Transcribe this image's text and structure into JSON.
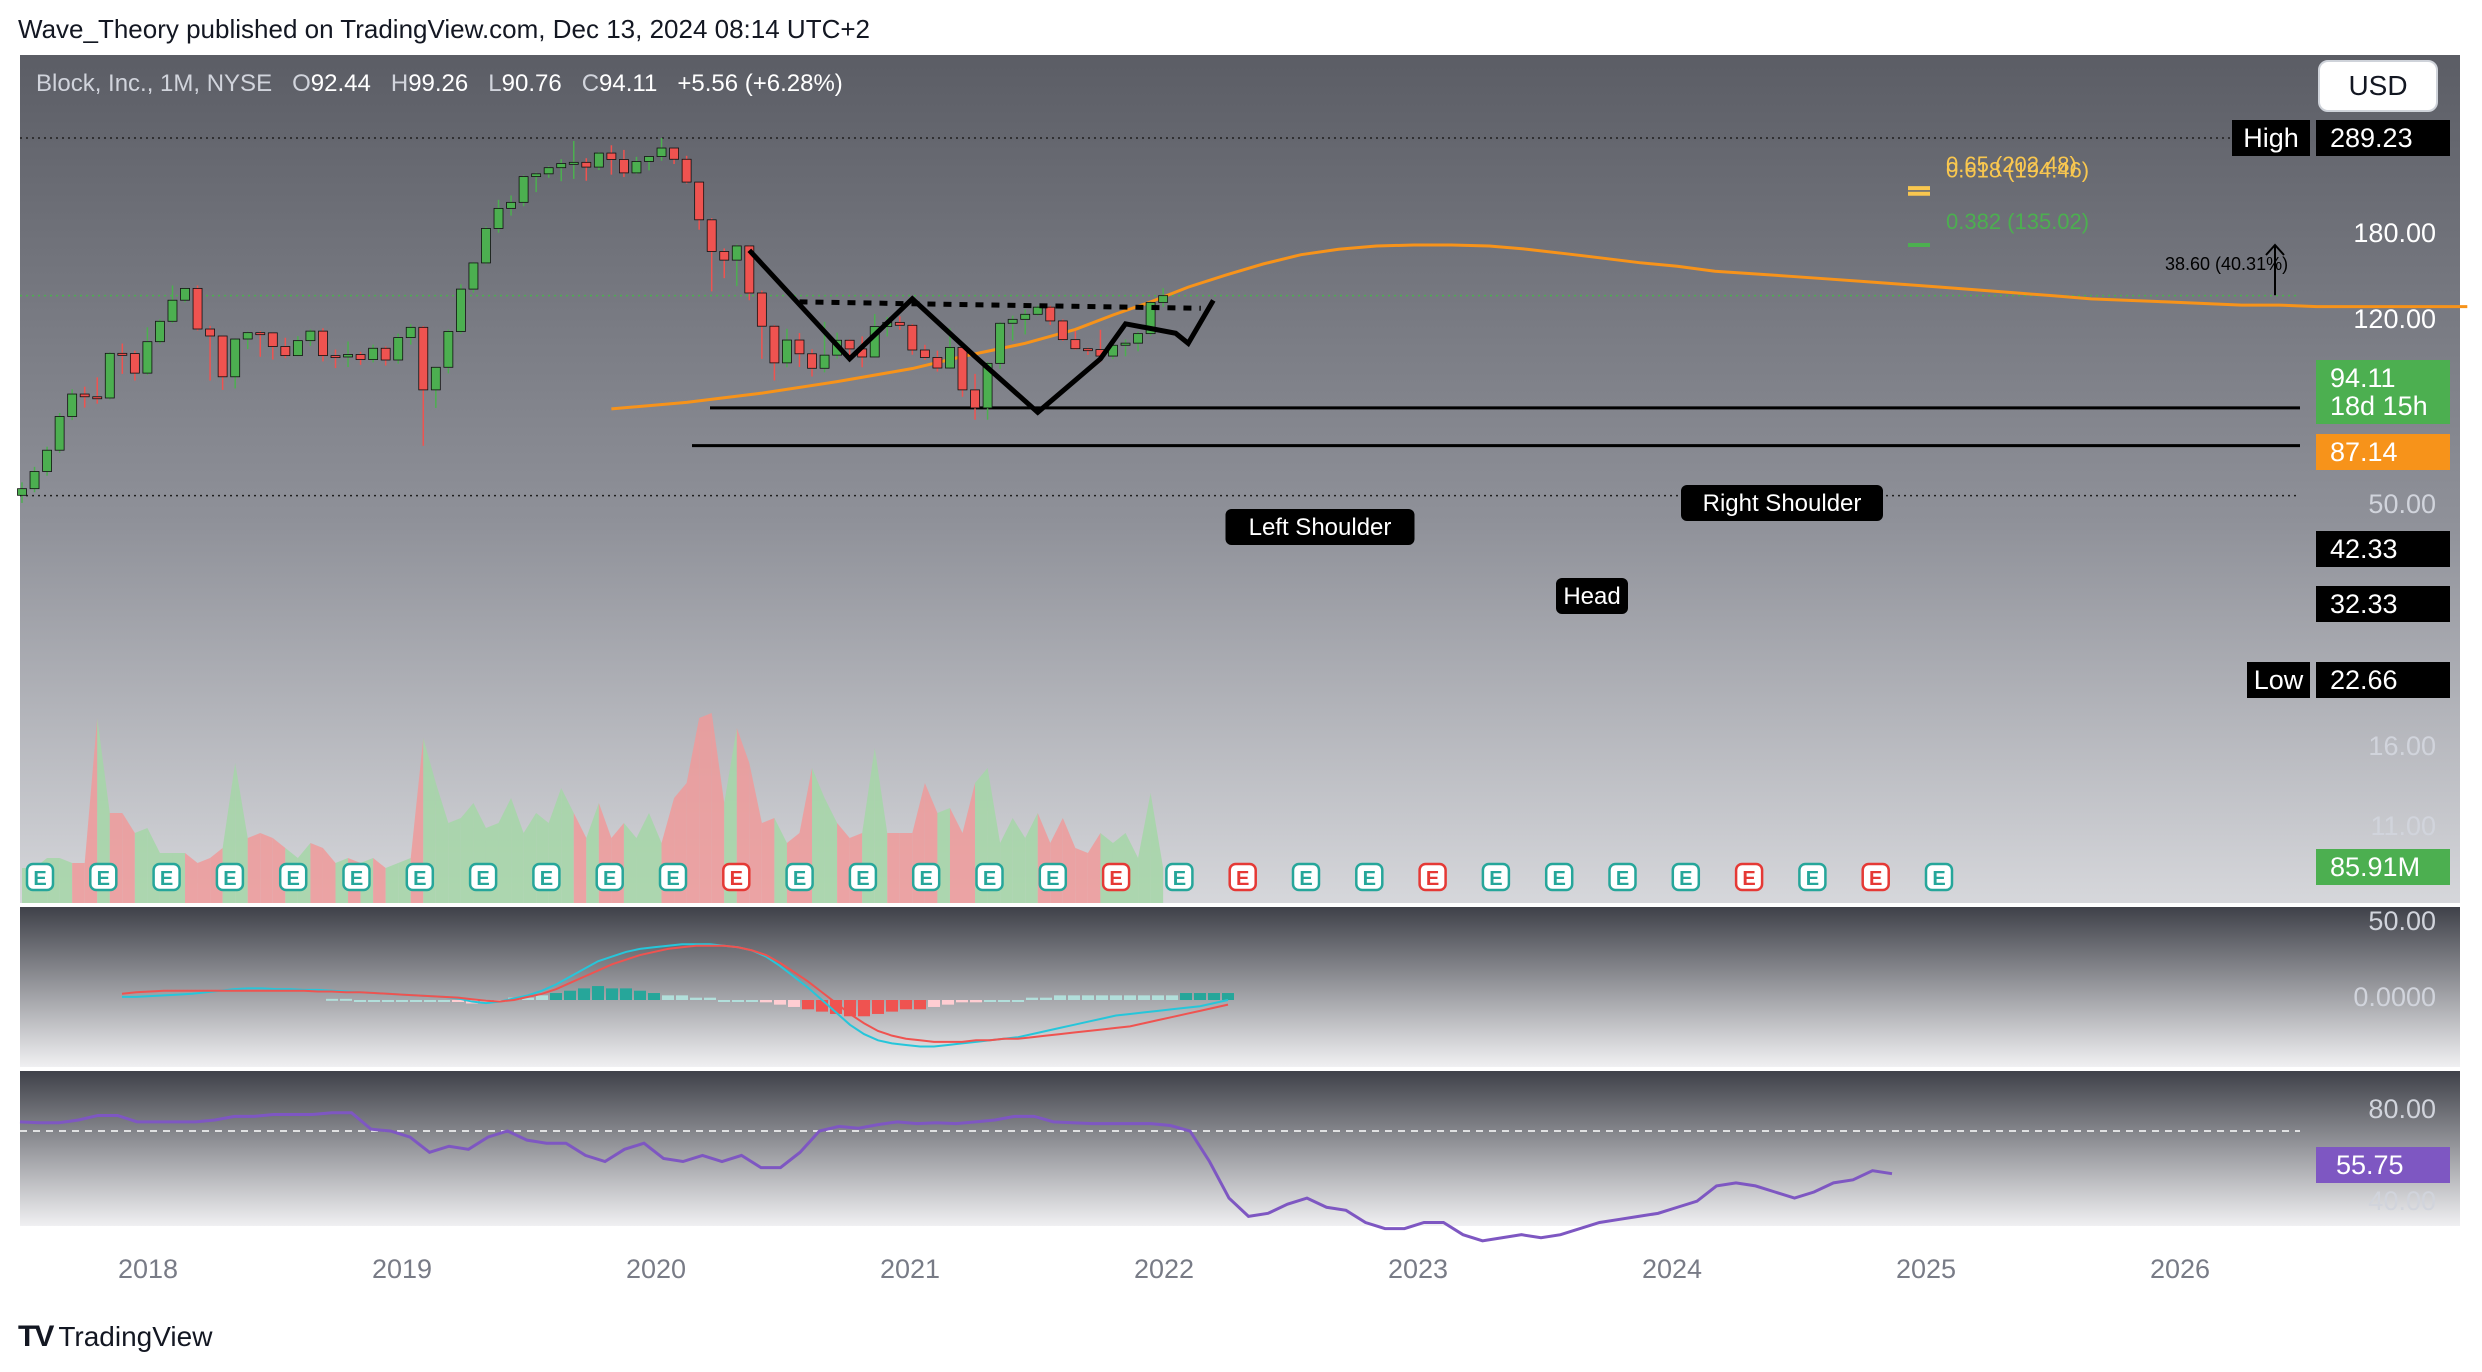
{
  "publisher_line": "Wave_Theory published on TradingView.com, Dec 13, 2024 08:14 UTC+2",
  "brand": "TradingView",
  "currency_button": "USD",
  "header": {
    "symbol": "Block, Inc., 1M, NYSE",
    "o_label": "O",
    "o_value": "92.44",
    "h_label": "H",
    "h_value": "99.26",
    "l_label": "L",
    "l_value": "90.76",
    "c_label": "C",
    "c_value": "94.11",
    "change": "+5.56 (+6.28%)"
  },
  "colors": {
    "up": "#26a69a",
    "up_candle": "#4caf50",
    "down": "#ef5350",
    "ma": "#f7931a",
    "macd": "#26c6da",
    "signal": "#ef5350",
    "rsi": "#7e57c2",
    "fib_gold": "#f9c74f",
    "fib_green": "#4caf50"
  },
  "chart_data": [
    {
      "type": "candlestick",
      "title": "Block, Inc., 1M, NYSE",
      "x_axis_ticks": [
        "2018",
        "2019",
        "2020",
        "2021",
        "2022",
        "2023",
        "2024",
        "2025",
        "2026"
      ],
      "y_axis_scale": "log",
      "y_axis_ticks": [
        "180.00",
        "120.00",
        "50.00",
        "16.00",
        "11.00"
      ],
      "price_labels": [
        {
          "text": "High",
          "value": "289.23"
        },
        {
          "text": "",
          "value": "94.11"
        },
        {
          "text": "",
          "value": "18d 15h"
        },
        {
          "text": "",
          "value": "87.14"
        },
        {
          "text": "",
          "value": "42.33"
        },
        {
          "text": "",
          "value": "32.33"
        },
        {
          "text": "Low",
          "value": "22.66"
        }
      ],
      "volume_label": "85.91M",
      "fib_levels": [
        {
          "label": "0.65 (202.48)",
          "value": 202.48
        },
        {
          "label": "0.618 (194.46)",
          "value": 194.46
        },
        {
          "label": "0.382 (135.02)",
          "value": 135.02
        }
      ],
      "measure_label": "38.60 (40.31%)",
      "horizontal_levels": [
        42.33,
        32.33,
        289.23,
        22.66
      ],
      "pattern_labels": [
        "Left Shoulder",
        "Head",
        "Right Shoulder"
      ],
      "ma_last": 87.14,
      "candles": [
        [
          22.7,
          23.8,
          21.5,
          24.9
        ],
        [
          23.8,
          26.9,
          23.2,
          27.8
        ],
        [
          26.9,
          31.3,
          26.1,
          32.1
        ],
        [
          31.3,
          39.8,
          30.7,
          40.8
        ],
        [
          39.8,
          46.7,
          38.8,
          48.3
        ],
        [
          46.7,
          45.8,
          42.4,
          49.2
        ],
        [
          45.8,
          45.4,
          43.6,
          52.6
        ],
        [
          45.4,
          62.4,
          44.9,
          62.9
        ],
        [
          62.4,
          62.3,
          53.9,
          66.9
        ],
        [
          62.3,
          54.2,
          51.4,
          63.6
        ],
        [
          54.2,
          67.8,
          53.5,
          75.1
        ],
        [
          67.8,
          78.4,
          66.8,
          79.5
        ],
        [
          78.4,
          91.1,
          77.4,
          101.2
        ],
        [
          91.1,
          99.1,
          89.8,
          99.5
        ],
        [
          99.1,
          74.2,
          73.4,
          101.2
        ],
        [
          74.2,
          70.6,
          51.4,
          75.9
        ],
        [
          70.6,
          52.8,
          48.1,
          70.9
        ],
        [
          52.8,
          69.1,
          48.6,
          69.4
        ],
        [
          69.1,
          72.3,
          64.3,
          72.9
        ],
        [
          72.3,
          72.2,
          60.9,
          73.1
        ],
        [
          72.2,
          65.5,
          59.7,
          72.5
        ],
        [
          65.5,
          61.4,
          60.3,
          69.7
        ],
        [
          61.4,
          68.3,
          61.2,
          70.5
        ],
        [
          68.3,
          73.1,
          65.8,
          74.0
        ],
        [
          73.1,
          61.4,
          58.9,
          74.6
        ],
        [
          61.4,
          60.8,
          56.2,
          64.1
        ],
        [
          60.8,
          61.9,
          56.6,
          67.9
        ],
        [
          61.9,
          59.7,
          57.5,
          63.1
        ],
        [
          59.7,
          64.7,
          58.5,
          66.4
        ],
        [
          64.7,
          59.5,
          57.2,
          65.6
        ],
        [
          59.5,
          69.8,
          58.0,
          71.8
        ],
        [
          69.8,
          75.1,
          66.4,
          76.7
        ],
        [
          75.1,
          48.1,
          32.3,
          75.8
        ],
        [
          48.1,
          56.5,
          42.3,
          56.6
        ],
        [
          56.5,
          72.9,
          54.1,
          73.9
        ],
        [
          72.9,
          98.6,
          71.8,
          102.0
        ],
        [
          98.6,
          118.8,
          96.1,
          119.6
        ],
        [
          118.8,
          151.9,
          117.7,
          153.8
        ],
        [
          151.9,
          175.2,
          147.3,
          186.2
        ],
        [
          175.2,
          182.9,
          166.4,
          192.1
        ],
        [
          182.9,
          219.7,
          177.9,
          221.7
        ],
        [
          219.7,
          224.1,
          196.8,
          226.1
        ],
        [
          224.1,
          234.1,
          217.9,
          236.5
        ],
        [
          234.1,
          241.2,
          212.6,
          248.6
        ],
        [
          241.2,
          243.2,
          216.1,
          283.2
        ],
        [
          243.2,
          235.1,
          213.3,
          250.4
        ],
        [
          235.1,
          259.8,
          230.2,
          261.8
        ],
        [
          259.8,
          248.2,
          222.8,
          274.6
        ],
        [
          248.2,
          225.6,
          219.0,
          265.7
        ],
        [
          225.6,
          244.7,
          223.7,
          252.8
        ],
        [
          244.7,
          253.5,
          229.7,
          254.7
        ],
        [
          253.5,
          269.3,
          245.9,
          289.2
        ],
        [
          269.3,
          248.6,
          240.3,
          269.3
        ],
        [
          248.6,
          211.3,
          209.0,
          254.8
        ],
        [
          211.3,
          161.5,
          150.5,
          211.3
        ],
        [
          161.5,
          128.9,
          97.0,
          163.4
        ],
        [
          128.9,
          121.2,
          106.6,
          131.7
        ],
        [
          121.2,
          134.1,
          100.7,
          135.4
        ],
        [
          134.1,
          95.9,
          91.1,
          134.8
        ],
        [
          95.9,
          75.7,
          60.0,
          97.6
        ],
        [
          75.7,
          58.3,
          51.4,
          76.3
        ],
        [
          58.3,
          68.6,
          56.5,
          74.3
        ],
        [
          68.6,
          62.2,
          56.6,
          72.1
        ],
        [
          62.2,
          56.1,
          52.9,
          64.2
        ],
        [
          56.1,
          61.6,
          54.5,
          78.1
        ],
        [
          61.6,
          68.5,
          60.1,
          72.3
        ],
        [
          68.5,
          64.4,
          59.6,
          68.9
        ],
        [
          64.4,
          60.8,
          56.5,
          70.4
        ],
        [
          60.8,
          75.5,
          60.6,
          82.5
        ],
        [
          75.5,
          77.8,
          70.4,
          80.8
        ],
        [
          77.8,
          76.2,
          73.8,
          81.2
        ],
        [
          76.2,
          63.9,
          61.8,
          76.9
        ],
        [
          63.9,
          60.6,
          59.5,
          66.3
        ],
        [
          60.6,
          56.2,
          54.8,
          63.6
        ],
        [
          56.2,
          65.1,
          55.9,
          74.6
        ],
        [
          65.1,
          48.1,
          45.8,
          66.9
        ],
        [
          48.1,
          42.3,
          38.9,
          53.9
        ],
        [
          42.3,
          58.1,
          38.9,
          58.7
        ],
        [
          58.1,
          77.3,
          55.9,
          77.9
        ],
        [
          77.3,
          79.5,
          68.2,
          81.6
        ],
        [
          79.5,
          82.4,
          71.4,
          85.3
        ],
        [
          82.4,
          86.7,
          81.6,
          87.7
        ],
        [
          86.7,
          78.6,
          76.4,
          87.5
        ],
        [
          78.6,
          68.8,
          68.2,
          79.4
        ],
        [
          68.8,
          64.5,
          64.0,
          73.2
        ],
        [
          64.5,
          64.1,
          61.7,
          65.0
        ],
        [
          64.1,
          61.2,
          58.6,
          73.8
        ],
        [
          61.2,
          66.1,
          59.9,
          66.6
        ],
        [
          66.1,
          67.1,
          61.1,
          68.9
        ],
        [
          67.1,
          71.8,
          63.3,
          72.8
        ],
        [
          71.8,
          89.7,
          70.8,
          90.1
        ],
        [
          89.7,
          94.1,
          86.9,
          99.3
        ]
      ],
      "volume": [
        7,
        7,
        9,
        9,
        8,
        8,
        37,
        18,
        18,
        14,
        15,
        10,
        10,
        10,
        8,
        9,
        11,
        28,
        13,
        14,
        13,
        11,
        9,
        12,
        11,
        8,
        9,
        8,
        9,
        7,
        8,
        9,
        33,
        24,
        16,
        17,
        20,
        15,
        16,
        21,
        14,
        18,
        16,
        23,
        18,
        13,
        20,
        13,
        16,
        13,
        18,
        12,
        21,
        24,
        37,
        38,
        20,
        35,
        28,
        16,
        17,
        12,
        14,
        27,
        21,
        16,
        13,
        14,
        31,
        14,
        14,
        14,
        24,
        18,
        19,
        14,
        24,
        27,
        12,
        17,
        13,
        18,
        12,
        17,
        11,
        10,
        14,
        12,
        14,
        9,
        22,
        7
      ],
      "ma_series": [
        [
          32,
          42
        ],
        [
          38,
          44
        ],
        [
          44,
          47
        ],
        [
          50,
          51
        ],
        [
          56,
          56
        ],
        [
          60,
          61
        ],
        [
          65,
          67
        ],
        [
          69,
          74
        ],
        [
          72,
          82
        ],
        [
          75,
          90
        ],
        [
          78,
          100
        ],
        [
          81,
          109
        ],
        [
          84,
          118
        ],
        [
          87,
          126
        ],
        [
          90,
          131
        ],
        [
          93,
          134
        ],
        [
          96,
          135
        ],
        [
          99,
          135
        ],
        [
          102,
          134
        ],
        [
          105,
          131
        ],
        [
          108,
          127
        ],
        [
          111,
          123
        ],
        [
          114,
          119
        ],
        [
          117,
          116
        ],
        [
          120,
          112
        ],
        [
          123,
          110
        ],
        [
          126,
          108
        ],
        [
          129,
          106
        ],
        [
          132,
          104
        ],
        [
          135,
          102
        ],
        [
          138,
          100
        ],
        [
          141,
          98
        ],
        [
          144,
          96
        ],
        [
          147,
          94
        ],
        [
          150,
          92
        ],
        [
          153,
          91
        ],
        [
          156,
          90
        ],
        [
          159,
          89
        ],
        [
          162,
          88
        ],
        [
          165,
          88
        ],
        [
          168,
          87
        ],
        [
          171,
          87
        ],
        [
          174,
          87
        ],
        [
          177,
          87
        ],
        [
          180,
          87
        ]
      ]
    },
    {
      "type": "line",
      "title": "MACD",
      "y_axis_ticks": [
        "50.00",
        "0.0000"
      ],
      "series": [
        {
          "values": [
            2,
            2,
            2.5,
            3,
            3.5,
            4,
            5,
            6,
            7,
            7.5,
            7.5,
            7,
            7,
            6.5,
            6.5,
            6,
            5.5,
            5,
            4.5,
            4,
            3.5,
            3,
            2.5,
            2,
            1,
            -1,
            -2,
            -1,
            1,
            3,
            6,
            10,
            15,
            20,
            25,
            28,
            31,
            33,
            34,
            35,
            36,
            36,
            36,
            35,
            34,
            32,
            28,
            22,
            15,
            8,
            0,
            -8,
            -16,
            -22,
            -26,
            -28,
            -29,
            -30,
            -30,
            -29,
            -28,
            -27,
            -26,
            -25,
            -24,
            -22,
            -20,
            -18,
            -16,
            -14,
            -12,
            -10,
            -9,
            -8,
            -7,
            -6,
            -5,
            -4,
            -2,
            0
          ]
        },
        {
          "values": [
            4,
            5,
            5.5,
            6,
            6,
            6,
            6,
            6,
            6,
            6,
            6,
            6,
            6,
            6,
            5.5,
            5.5,
            5,
            5,
            4.5,
            4,
            3.5,
            3,
            2.5,
            2,
            1.5,
            0.5,
            -0.5,
            -1,
            0,
            2,
            4,
            7,
            11,
            15,
            19,
            23,
            26,
            29,
            31,
            33,
            34,
            35,
            35,
            35,
            34,
            32,
            29,
            24,
            18,
            12,
            5,
            -2,
            -9,
            -15,
            -20,
            -23,
            -25,
            -26,
            -27,
            -27,
            -27,
            -26,
            -26,
            -25,
            -25,
            -24,
            -23,
            -22,
            -21,
            -20,
            -19,
            -18,
            -17,
            -15,
            -13,
            -11,
            -9,
            -7,
            -5,
            -3
          ]
        }
      ],
      "histogram": [
        0,
        0,
        0,
        0,
        0,
        0,
        0,
        0,
        1,
        1,
        1.5,
        1,
        1,
        0.5,
        0.5,
        0.5,
        0.5,
        0,
        0,
        0,
        0,
        0,
        0,
        0,
        -0.5,
        -1.5,
        -1.5,
        0,
        1,
        1,
        2,
        3,
        4,
        5,
        6,
        5,
        5,
        4,
        3,
        2,
        2,
        1,
        1,
        0,
        0,
        0,
        -1,
        -2,
        -3,
        -4,
        -5,
        -6,
        -7,
        -7,
        -6,
        -5,
        -4,
        -4,
        -3,
        -2,
        -1,
        -1,
        0,
        0,
        0,
        1,
        1,
        2,
        2,
        2,
        2,
        2,
        2,
        2,
        2,
        2,
        3,
        3,
        3,
        3
      ]
    },
    {
      "type": "line",
      "title": "RSI",
      "y_axis_ticks": [
        "80.00",
        "40.00"
      ],
      "rsi_last": "55.75",
      "overbought": 70,
      "oversold": 30,
      "series": [
        {
          "values": [
            80,
            79,
            79,
            82,
            87,
            87,
            80,
            80,
            80,
            80,
            82,
            86,
            86,
            88,
            88,
            88,
            90,
            90,
            72,
            70,
            68,
            63,
            65,
            64,
            68,
            70,
            67,
            66,
            66,
            62,
            60,
            64,
            66,
            61,
            60,
            62,
            60,
            62,
            58,
            58,
            63,
            70,
            75,
            73,
            77,
            80,
            78,
            79,
            78,
            80,
            82,
            86,
            86,
            80,
            79,
            78,
            78,
            78,
            78,
            76,
            70,
            60,
            48,
            42,
            43,
            46,
            48,
            45,
            44,
            40,
            38,
            38,
            40,
            40,
            36,
            34,
            35,
            36,
            35,
            36,
            38,
            40,
            41,
            42,
            43,
            45,
            47,
            52,
            53,
            52,
            50,
            48,
            50,
            53,
            54,
            57,
            56
          ]
        }
      ]
    }
  ]
}
